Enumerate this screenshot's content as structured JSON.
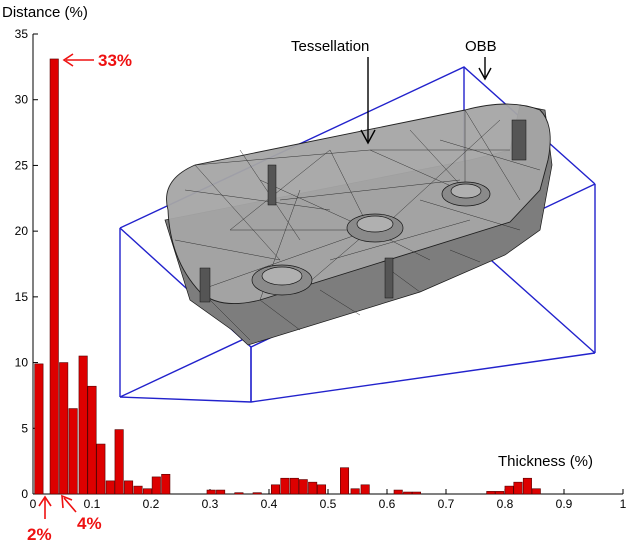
{
  "chart_data": {
    "type": "bar",
    "ylabel": "Distance (%)",
    "xlabel": "Thickness (%)",
    "xlim": [
      0,
      1
    ],
    "ylim": [
      0,
      35
    ],
    "x_ticks": [
      0,
      0.1,
      0.2,
      0.3,
      0.4,
      0.5,
      0.6,
      0.7,
      0.8,
      0.9,
      1
    ],
    "x_tick_labels": [
      "0",
      "0.1",
      "0.2",
      "0.3",
      "0.4",
      "0.5",
      "0.6",
      "0.7",
      "0.8",
      "0.9",
      "1"
    ],
    "y_ticks": [
      0,
      5,
      10,
      15,
      20,
      25,
      30,
      35
    ],
    "y_tick_labels": [
      "0",
      "5",
      "10",
      "15",
      "20",
      "25",
      "30",
      "35"
    ],
    "bar_color": "#dd0000",
    "bin_width": 0.0155,
    "bars": [
      {
        "x": 0.01,
        "value": 9.9
      },
      {
        "x": 0.036,
        "value": 33.1
      },
      {
        "x": 0.052,
        "value": 10.0
      },
      {
        "x": 0.068,
        "value": 6.5
      },
      {
        "x": 0.085,
        "value": 10.5
      },
      {
        "x": 0.1,
        "value": 8.2
      },
      {
        "x": 0.115,
        "value": 3.8
      },
      {
        "x": 0.131,
        "value": 1.0
      },
      {
        "x": 0.146,
        "value": 4.9
      },
      {
        "x": 0.162,
        "value": 1.0
      },
      {
        "x": 0.178,
        "value": 0.6
      },
      {
        "x": 0.194,
        "value": 0.4
      },
      {
        "x": 0.209,
        "value": 1.3
      },
      {
        "x": 0.225,
        "value": 1.5
      },
      {
        "x": 0.302,
        "value": 0.3
      },
      {
        "x": 0.318,
        "value": 0.3
      },
      {
        "x": 0.349,
        "value": 0.1
      },
      {
        "x": 0.38,
        "value": 0.1
      },
      {
        "x": 0.411,
        "value": 0.7
      },
      {
        "x": 0.427,
        "value": 1.2
      },
      {
        "x": 0.443,
        "value": 1.2
      },
      {
        "x": 0.458,
        "value": 1.1
      },
      {
        "x": 0.474,
        "value": 0.9
      },
      {
        "x": 0.489,
        "value": 0.7
      },
      {
        "x": 0.528,
        "value": 2.0
      },
      {
        "x": 0.546,
        "value": 0.4
      },
      {
        "x": 0.563,
        "value": 0.7
      },
      {
        "x": 0.619,
        "value": 0.3
      },
      {
        "x": 0.635,
        "value": 0.15
      },
      {
        "x": 0.65,
        "value": 0.15
      },
      {
        "x": 0.776,
        "value": 0.2
      },
      {
        "x": 0.791,
        "value": 0.2
      },
      {
        "x": 0.807,
        "value": 0.6
      },
      {
        "x": 0.822,
        "value": 0.9
      },
      {
        "x": 0.838,
        "value": 1.2
      },
      {
        "x": 0.853,
        "value": 0.4
      }
    ],
    "annotations": [
      {
        "text": "33%",
        "points_to_x": 0.036,
        "points_to_value": 33.1,
        "color": "#ee1111"
      },
      {
        "text": "2%",
        "color": "#ee1111"
      },
      {
        "text": "4%",
        "color": "#ee1111"
      }
    ],
    "inset_labels": {
      "tessellation": "Tessellation",
      "obb": "OBB"
    },
    "inset_colors": {
      "obb_box": "#2222cc",
      "mesh_fill": "#9a9a9a",
      "mesh_lines": "#1a1a1a"
    }
  }
}
